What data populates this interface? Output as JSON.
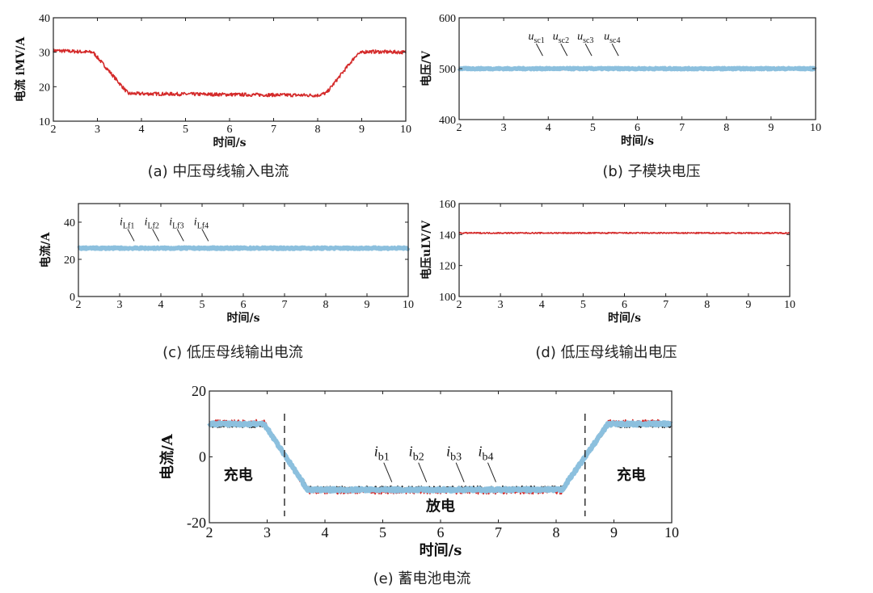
{
  "chart_data": [
    {
      "id": "a",
      "type": "line",
      "caption": "(a) 中压母线输入电流",
      "xlabel": "时间/s",
      "ylabel": "电流 iMV/A",
      "xlim": [
        2,
        10
      ],
      "ylim": [
        10,
        40
      ],
      "xticks": [
        2,
        3,
        4,
        5,
        6,
        7,
        8,
        9,
        10
      ],
      "yticks": [
        10,
        20,
        30,
        40
      ],
      "series": [
        {
          "color": "#d42a2a",
          "noise": 0.5,
          "points": [
            [
              2,
              30.5
            ],
            [
              2.9,
              30.0
            ],
            [
              3.7,
              18.0
            ],
            [
              8.0,
              17.5
            ],
            [
              8.2,
              18.2
            ],
            [
              8.9,
              29.5
            ],
            [
              9.1,
              30.2
            ],
            [
              10,
              30.0
            ]
          ]
        }
      ],
      "annotations": []
    },
    {
      "id": "b",
      "type": "line",
      "caption": "(b) 子模块电压",
      "xlabel": "时间/s",
      "ylabel": "电压/V",
      "xlim": [
        2,
        10
      ],
      "ylim": [
        400,
        600
      ],
      "xticks": [
        2,
        3,
        4,
        5,
        6,
        7,
        8,
        9,
        10
      ],
      "yticks": [
        400,
        500,
        600
      ],
      "series": [
        {
          "color": "#d42a2a",
          "noise": 2.5,
          "points": [
            [
              2,
              500
            ],
            [
              10,
              500
            ]
          ]
        },
        {
          "color": "#111111",
          "noise": 2.5,
          "points": [
            [
              2,
              500
            ],
            [
              10,
              500
            ]
          ]
        },
        {
          "color": "#8cc0de",
          "noise": 1.6,
          "points": [
            [
              2,
              500
            ],
            [
              10,
              500
            ]
          ]
        }
      ],
      "annotations": [
        {
          "label": "usc1",
          "base": "u",
          "sub": "sc1",
          "x": 3.55,
          "y": 557
        },
        {
          "label": "usc2",
          "base": "u",
          "sub": "sc2",
          "x": 4.1,
          "y": 557
        },
        {
          "label": "usc3",
          "base": "u",
          "sub": "sc3",
          "x": 4.65,
          "y": 557
        },
        {
          "label": "usc4",
          "base": "u",
          "sub": "sc4",
          "x": 5.25,
          "y": 557
        }
      ]
    },
    {
      "id": "c",
      "type": "line",
      "caption": "(c) 低压母线输出电流",
      "xlabel": "时间/s",
      "ylabel": "电流/A",
      "xlim": [
        2,
        10
      ],
      "ylim": [
        0,
        50
      ],
      "xticks": [
        2,
        3,
        4,
        5,
        6,
        7,
        8,
        9,
        10
      ],
      "yticks": [
        0,
        20,
        40
      ],
      "series": [
        {
          "color": "#d42a2a",
          "noise": 0.7,
          "points": [
            [
              2,
              26
            ],
            [
              10,
              26
            ]
          ]
        },
        {
          "color": "#111111",
          "noise": 0.7,
          "points": [
            [
              2,
              26
            ],
            [
              10,
              26
            ]
          ]
        },
        {
          "color": "#8cc0de",
          "noise": 0.5,
          "points": [
            [
              2,
              26
            ],
            [
              10,
              26
            ]
          ]
        }
      ],
      "annotations": [
        {
          "label": "iLf1",
          "base": "i",
          "sub": "Lf1",
          "x": 3.0,
          "y": 38.5
        },
        {
          "label": "iLf2",
          "base": "i",
          "sub": "Lf2",
          "x": 3.6,
          "y": 38.5
        },
        {
          "label": "iLf3",
          "base": "i",
          "sub": "Lf3",
          "x": 4.2,
          "y": 38.5
        },
        {
          "label": "iLf4",
          "base": "i",
          "sub": "Lf4",
          "x": 4.8,
          "y": 38.5
        }
      ]
    },
    {
      "id": "d",
      "type": "line",
      "caption": "(d) 低压母线输出电压",
      "xlabel": "时间/s",
      "ylabel": "电压uLV/V",
      "xlim": [
        2,
        10
      ],
      "ylim": [
        100,
        160
      ],
      "xticks": [
        2,
        3,
        4,
        5,
        6,
        7,
        8,
        9,
        10
      ],
      "yticks": [
        100,
        120,
        140,
        160
      ],
      "series": [
        {
          "color": "#d42a2a",
          "noise": 0.4,
          "points": [
            [
              2,
              141
            ],
            [
              10,
              141
            ]
          ]
        }
      ],
      "annotations": []
    },
    {
      "id": "e",
      "type": "line",
      "caption": "(e) 蓄电池电流",
      "xlabel": "时间/s",
      "ylabel": "电流/A",
      "xlim": [
        2,
        10
      ],
      "ylim": [
        -20,
        20
      ],
      "xticks": [
        2,
        3,
        4,
        5,
        6,
        7,
        8,
        9,
        10
      ],
      "yticks": [
        -20,
        0,
        20
      ],
      "vlines": [
        3.3,
        8.5
      ],
      "regions": [
        {
          "text": "充电",
          "x": 2.5,
          "y": -7
        },
        {
          "text": "放电",
          "x": 6.0,
          "y": -16.5
        },
        {
          "text": "充电",
          "x": 9.3,
          "y": -7
        }
      ],
      "series": [
        {
          "color": "#d42a2a",
          "noise": 0.8,
          "points": [
            [
              2,
              10.5
            ],
            [
              2.95,
              10.5
            ],
            [
              3.7,
              -10.5
            ],
            [
              8.1,
              -10.5
            ],
            [
              8.9,
              10.5
            ],
            [
              10,
              10.5
            ]
          ]
        },
        {
          "color": "#111111",
          "noise": 0.6,
          "points": [
            [
              2,
              9.5
            ],
            [
              2.95,
              9.5
            ],
            [
              3.7,
              -9.5
            ],
            [
              8.1,
              -9.5
            ],
            [
              8.9,
              9.5
            ],
            [
              10,
              9.5
            ]
          ]
        },
        {
          "color": "#8cc0de",
          "noise": 0.4,
          "points": [
            [
              2,
              10
            ],
            [
              2.95,
              10
            ],
            [
              3.7,
              -10
            ],
            [
              8.1,
              -10
            ],
            [
              8.9,
              10
            ],
            [
              10,
              10
            ]
          ]
        }
      ],
      "annotations": [
        {
          "label": "ib1",
          "base": "i",
          "sub": "b1",
          "x": 4.85,
          "y": 0.2
        },
        {
          "label": "ib2",
          "base": "i",
          "sub": "b2",
          "x": 5.45,
          "y": 0.2
        },
        {
          "label": "ib3",
          "base": "i",
          "sub": "b3",
          "x": 6.1,
          "y": 0.2
        },
        {
          "label": "ib4",
          "base": "i",
          "sub": "b4",
          "x": 6.65,
          "y": 0.2
        }
      ]
    }
  ]
}
